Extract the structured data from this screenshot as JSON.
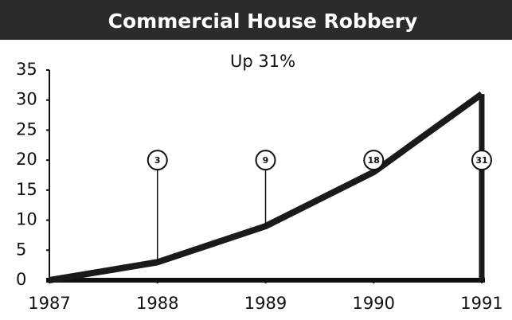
{
  "chart_data": {
    "type": "line",
    "title": "Commercial House Robbery",
    "subtitle": "Up 31%",
    "x": [
      1987,
      1988,
      1989,
      1990,
      1991
    ],
    "values": [
      0,
      3,
      9,
      18,
      31
    ],
    "color": "#1a1a1a",
    "xlim": [
      1987,
      1991
    ],
    "xticks": [
      1987,
      1988,
      1989,
      1990,
      1991
    ],
    "ylim": [
      0,
      35
    ],
    "yticks": [
      0,
      5,
      10,
      15,
      20,
      25,
      30,
      35
    ],
    "grid": false
  }
}
